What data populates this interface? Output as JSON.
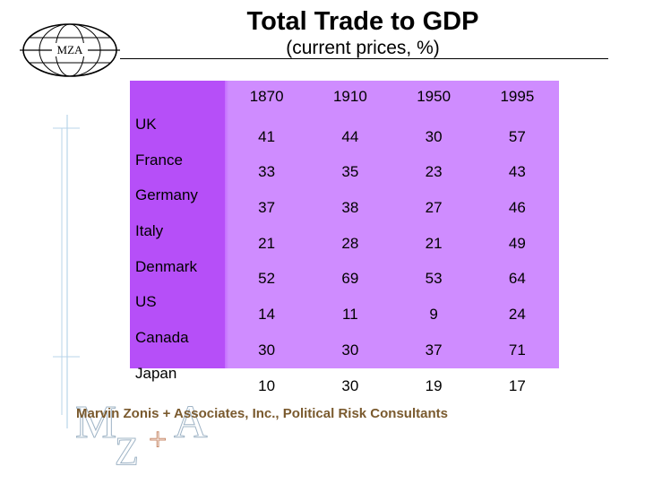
{
  "logo": {
    "text": "MZA"
  },
  "title": "Total Trade to GDP",
  "subtitle": "(current prices, %)",
  "table": {
    "headers": [
      "1870",
      "1910",
      "1950",
      "1995"
    ],
    "rows": [
      {
        "country": "UK",
        "values": [
          "41",
          "44",
          "30",
          "57"
        ]
      },
      {
        "country": "France",
        "values": [
          "33",
          "35",
          "23",
          "43"
        ]
      },
      {
        "country": "Germany",
        "values": [
          "37",
          "38",
          "27",
          "46"
        ]
      },
      {
        "country": "Italy",
        "values": [
          "21",
          "28",
          "21",
          "49"
        ]
      },
      {
        "country": "Denmark",
        "values": [
          "52",
          "69",
          "53",
          "64"
        ]
      },
      {
        "country": "US",
        "values": [
          "14",
          "11",
          "9",
          "24"
        ]
      },
      {
        "country": "Canada",
        "values": [
          "30",
          "30",
          "37",
          "71"
        ]
      },
      {
        "country": "Japan",
        "values": [
          "10",
          "30",
          "19",
          "17"
        ]
      }
    ]
  },
  "footer": {
    "text": "Marvin Zonis + Associates, Inc., Political Risk Consultants",
    "logo_letters": [
      "M",
      "Z",
      "+",
      "A"
    ]
  },
  "colors": {
    "table_bg": "#cf8cff",
    "first_col_bg": "#b64ff8",
    "footer_text": "#7a5a2e",
    "footer_logo": "#9fb4c6"
  }
}
